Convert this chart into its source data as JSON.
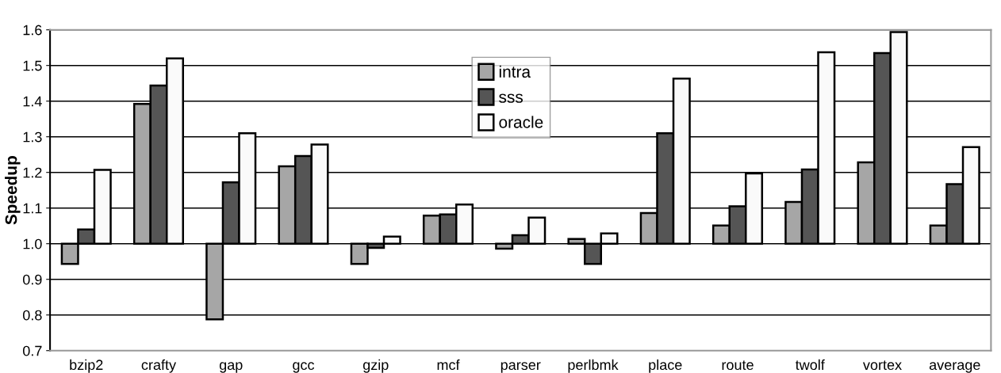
{
  "chart_data": {
    "type": "bar",
    "ylabel": "Speedup",
    "categories": [
      "bzip2",
      "crafty",
      "gap",
      "gcc",
      "gzip",
      "mcf",
      "parser",
      "perlbmk",
      "place",
      "route",
      "twolf",
      "vortex",
      "average"
    ],
    "series": [
      {
        "name": "intra",
        "color": "#a6a6a6",
        "base": [
          1.0,
          1.0,
          1.0,
          1.0,
          1.0,
          1.0,
          1.0,
          1.0,
          1.0,
          1.0,
          1.0,
          1.0,
          1.0
        ],
        "values": [
          -0.057,
          0.392,
          -0.212,
          0.217,
          -0.057,
          0.079,
          -0.014,
          0.013,
          0.086,
          0.051,
          0.117,
          0.228,
          0.051
        ]
      },
      {
        "name": "sss",
        "color": "#555555",
        "base": [
          1.0,
          1.0,
          1.0,
          1.0,
          1.0,
          1.0,
          1.0,
          1.0,
          1.0,
          1.0,
          1.0,
          1.0,
          1.0
        ],
        "values": [
          0.04,
          0.444,
          0.172,
          0.246,
          -0.012,
          0.082,
          0.024,
          -0.057,
          0.31,
          0.105,
          0.208,
          0.535,
          0.167
        ]
      },
      {
        "name": "oracle",
        "color": "#fafafa",
        "base": [
          1.0,
          1.0,
          1.0,
          1.0,
          1.0,
          1.0,
          1.0,
          1.0,
          1.0,
          1.0,
          1.0,
          1.0,
          1.0
        ],
        "values": [
          0.207,
          0.52,
          0.31,
          0.278,
          0.02,
          0.11,
          0.073,
          0.029,
          0.463,
          0.197,
          0.537,
          0.594,
          0.271
        ]
      }
    ],
    "ylim": [
      0.7,
      1.6
    ],
    "yticks": [
      0.7,
      0.8,
      0.9,
      {
        "value": 1.0,
        "label": "1.0"
      },
      1.1,
      1.2,
      1.3,
      1.4,
      1.5,
      1.6
    ],
    "grid": "y",
    "legend": "top center"
  }
}
